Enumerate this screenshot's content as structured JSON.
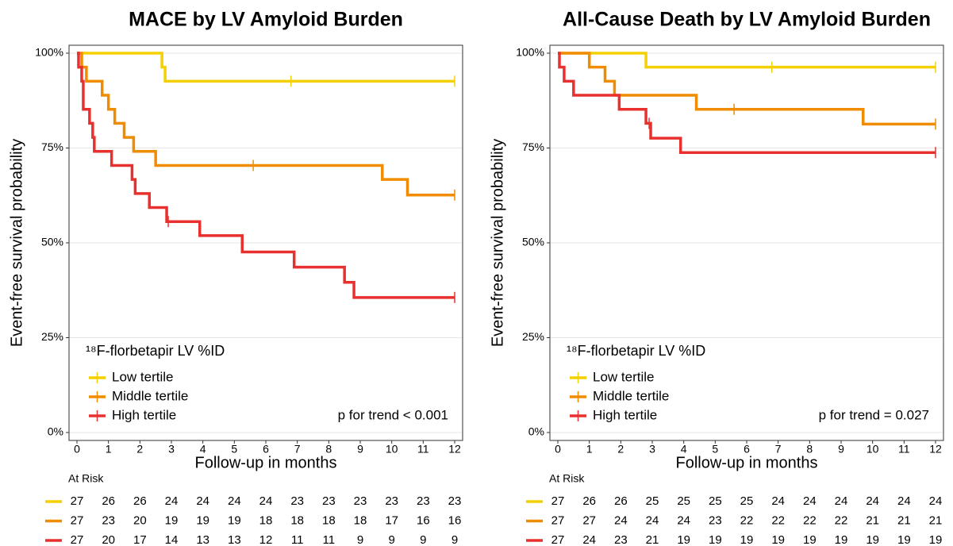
{
  "chart_data": [
    {
      "type": "step",
      "title": "MACE by LV Amyloid Burden",
      "x_label": "Follow-up in months",
      "y_label": "Event-free survival probability",
      "legend_title": "¹⁸F-florbetapir LV %ID",
      "annotation": "p for trend < 0.001",
      "at_risk_label": "At Risk",
      "xlim": [
        0,
        12
      ],
      "xticks": [
        0,
        1,
        2,
        3,
        4,
        5,
        6,
        7,
        8,
        9,
        10,
        11,
        12
      ],
      "ylim": [
        0,
        100
      ],
      "yticks": [
        {
          "value": 0,
          "label": "0%"
        },
        {
          "value": 25,
          "label": "25%"
        },
        {
          "value": 50,
          "label": "50%"
        },
        {
          "value": 75,
          "label": "75%"
        },
        {
          "value": 100,
          "label": "100%"
        }
      ],
      "grid": true,
      "series": [
        {
          "name": "Low tertile",
          "color": "#f5d000",
          "x": [
            0,
            2.7,
            2.8,
            12
          ],
          "values": [
            100,
            96.3,
            92.6,
            92.6
          ],
          "censor_x": [
            6.8,
            12
          ],
          "censor_y": [
            92.6,
            92.6
          ],
          "at_risk": [
            27,
            26,
            26,
            24,
            24,
            24,
            24,
            23,
            23,
            23,
            23,
            23,
            23
          ]
        },
        {
          "name": "Middle tertile",
          "color": "#f08c00",
          "x": [
            0,
            0.15,
            0.3,
            0.8,
            1.0,
            1.2,
            1.5,
            1.8,
            2.5,
            9.7,
            10.5,
            12
          ],
          "values": [
            100,
            96.3,
            92.6,
            88.9,
            85.2,
            81.5,
            77.8,
            74.1,
            70.4,
            66.7,
            62.6,
            62.6
          ],
          "censor_x": [
            5.6,
            12
          ],
          "censor_y": [
            70.4,
            62.6
          ],
          "at_risk": [
            27,
            23,
            20,
            19,
            19,
            19,
            18,
            18,
            18,
            18,
            17,
            16,
            16
          ]
        },
        {
          "name": "High tertile",
          "color": "#e8312e",
          "x": [
            0,
            0.05,
            0.15,
            0.2,
            0.4,
            0.5,
            0.55,
            1.1,
            1.75,
            1.85,
            2.3,
            2.85,
            3.9,
            5.25,
            6.9,
            8.5,
            8.8,
            12
          ],
          "values": [
            100,
            96.3,
            92.6,
            85.2,
            81.5,
            77.8,
            74.1,
            70.4,
            66.7,
            63,
            59.3,
            55.6,
            51.9,
            47.6,
            43.6,
            39.6,
            35.6,
            35.6
          ],
          "censor_x": [
            2.9,
            12
          ],
          "censor_y": [
            55.6,
            35.6
          ],
          "at_risk": [
            27,
            20,
            17,
            14,
            13,
            13,
            12,
            11,
            11,
            9,
            9,
            9,
            9
          ]
        }
      ]
    },
    {
      "type": "step",
      "title": "All-Cause Death by LV Amyloid Burden",
      "x_label": "Follow-up in months",
      "y_label": "Event-free survival probability",
      "legend_title": "¹⁸F-florbetapir LV %ID",
      "annotation": "p for trend = 0.027",
      "at_risk_label": "At Risk",
      "xlim": [
        0,
        12
      ],
      "xticks": [
        0,
        1,
        2,
        3,
        4,
        5,
        6,
        7,
        8,
        9,
        10,
        11,
        12
      ],
      "ylim": [
        0,
        100
      ],
      "yticks": [
        {
          "value": 0,
          "label": "0%"
        },
        {
          "value": 25,
          "label": "25%"
        },
        {
          "value": 50,
          "label": "50%"
        },
        {
          "value": 75,
          "label": "75%"
        },
        {
          "value": 100,
          "label": "100%"
        }
      ],
      "grid": true,
      "series": [
        {
          "name": "Low tertile",
          "color": "#f5d000",
          "x": [
            0,
            2.8,
            12
          ],
          "values": [
            100,
            96.3,
            96.3
          ],
          "censor_x": [
            6.8,
            12
          ],
          "censor_y": [
            96.3,
            96.3
          ],
          "at_risk": [
            27,
            26,
            26,
            25,
            25,
            25,
            25,
            24,
            24,
            24,
            24,
            24,
            24
          ]
        },
        {
          "name": "Middle tertile",
          "color": "#f08c00",
          "x": [
            0,
            1.0,
            1.5,
            1.8,
            4.4,
            9.7,
            12
          ],
          "values": [
            100,
            96.3,
            92.6,
            88.9,
            85.2,
            81.3,
            81.3
          ],
          "censor_x": [
            5.6,
            12
          ],
          "censor_y": [
            85.2,
            81.3
          ],
          "at_risk": [
            27,
            27,
            24,
            24,
            24,
            23,
            22,
            22,
            22,
            22,
            21,
            21,
            21
          ]
        },
        {
          "name": "High tertile",
          "color": "#e8312e",
          "x": [
            0,
            0.05,
            0.2,
            0.5,
            1.95,
            2.8,
            2.95,
            3.9,
            12
          ],
          "values": [
            100,
            96.3,
            92.6,
            88.9,
            85.2,
            81.5,
            77.6,
            73.8,
            73.8
          ],
          "censor_x": [
            2.9,
            12
          ],
          "censor_y": [
            81.5,
            73.8
          ],
          "at_risk": [
            27,
            24,
            23,
            21,
            19,
            19,
            19,
            19,
            19,
            19,
            19,
            19,
            19
          ]
        }
      ]
    }
  ]
}
